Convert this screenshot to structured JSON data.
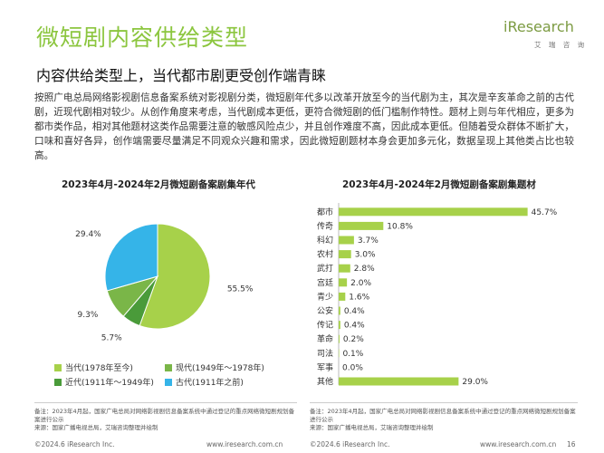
{
  "header": {
    "title": "微短剧内容供给类型",
    "subtitle": "内容供给类型上，当代都市剧更受创作端青睐",
    "logo_text": "iResearch",
    "logo_sub": "艾 瑞 咨 询"
  },
  "body_text": "按照广电总局网络影视剧信息备案系统对影视剧分类，微短剧年代多以改革开放至今的当代剧为主，其次是辛亥革命之前的古代剧，近现代剧相对较少。从创作角度来考虑，当代剧成本更低，更符合微短剧的低门槛制作特性。题材上则与年代相应，更多为都市类作品，相对其他题材这类作品需要注意的敏感风险点少，并且创作难度不高，因此成本更低。但随着受众群体不断扩大，口味和喜好各异，创作端需要尽量满足不同观众兴趣和需求，因此微短剧题材本身会更加多元化，数据呈现上其他类占比也较高。",
  "colors": {
    "accent": "#8cc63f",
    "pie": [
      "#a7d14a",
      "#4a9b3a",
      "#7ab648",
      "#35b4e8"
    ],
    "bar": "#a7d14a"
  },
  "chart_data": [
    {
      "type": "pie",
      "title": "2023年4月-2024年2月微短剧备案剧集年代",
      "categories": [
        "当代(1978年至今)",
        "近代(1911年～1949年)",
        "现代(1949年～1978年)",
        "古代(1911年之前)"
      ],
      "values": [
        55.5,
        5.7,
        9.3,
        29.4
      ],
      "value_labels": [
        "55.5%",
        "5.7%",
        "9.3%",
        "29.4%"
      ],
      "legend": [
        {
          "label": "当代(1978年至今)",
          "color": "#a7d14a"
        },
        {
          "label": "现代(1949年～1978年)",
          "color": "#7ab648"
        },
        {
          "label": "近代(1911年～1949年)",
          "color": "#4a9b3a"
        },
        {
          "label": "古代(1911年之前)",
          "color": "#35b4e8"
        }
      ],
      "legend_position": "bottom"
    },
    {
      "type": "bar",
      "orientation": "horizontal",
      "title": "2023年4月-2024年2月微短剧备案剧集题材",
      "categories": [
        "都市",
        "传奇",
        "科幻",
        "农村",
        "武打",
        "宫廷",
        "青少",
        "公安",
        "传记",
        "革命",
        "司法",
        "军事",
        "其他"
      ],
      "values": [
        45.7,
        10.8,
        3.7,
        3.0,
        2.8,
        2.0,
        1.6,
        0.4,
        0.4,
        0.2,
        0.1,
        0.0,
        29.0
      ],
      "value_labels": [
        "45.7%",
        "10.8%",
        "3.7%",
        "3.0%",
        "2.8%",
        "2.0%",
        "1.6%",
        "0.4%",
        "0.4%",
        "0.2%",
        "0.1%",
        "0.0%",
        "29.0%"
      ],
      "xlim": [
        0,
        46
      ]
    }
  ],
  "footnotes": {
    "left": "备注：2023年4月起，国家广电总局对网络影视剧信息备案系统中通过登记的重点网络微短剧规划备案进行公示\n来源：国家广播电视总局，艾瑞咨询整理并绘制",
    "right": "备注：2023年4月起，国家广电总局对网络影视剧信息备案系统中通过登记的重点网络微短剧规划备案进行公示\n来源：国家广播电视总局，艾瑞咨询整理并绘制"
  },
  "footer": {
    "copyright_left": "©2024.6 iResearch Inc.",
    "url_left": "www.iresearch.com.cn",
    "copyright_right": "©2024.6 iResearch Inc.",
    "url_right": "www.iresearch.com.cn",
    "page_number": "16"
  }
}
